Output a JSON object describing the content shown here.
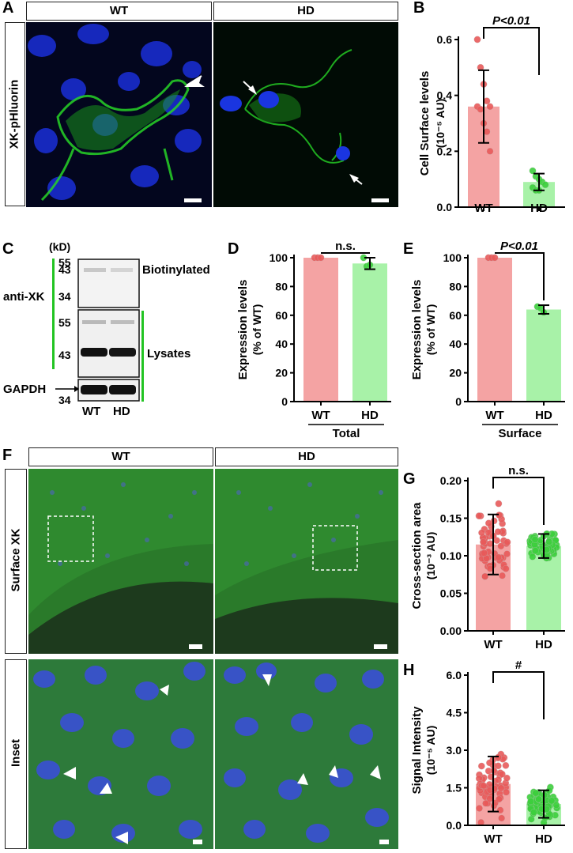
{
  "panels": {
    "A": {
      "letter": "A",
      "col_labels": [
        "WT",
        "HD"
      ],
      "row_label": "XK-pHluorin"
    },
    "B": {
      "letter": "B",
      "ylabel": "Cell Surface levels",
      "yunit": "(10⁻⁵ AU)",
      "categories": [
        "WT",
        "HD"
      ],
      "sig": "P<0.01"
    },
    "C": {
      "letter": "C",
      "kd": "(kD)",
      "markers": [
        "55",
        "43",
        "34",
        "55",
        "43",
        "34"
      ],
      "antibody": "anti-XK",
      "gapdh": "GAPDH",
      "biot": "Biotinylated",
      "lysates": "Lysates",
      "lanes": [
        "WT",
        "HD"
      ]
    },
    "D": {
      "letter": "D",
      "ylabel": "Expression  levels",
      "yunit": "(% of WT)",
      "categories": [
        "WT",
        "HD"
      ],
      "sig": "n.s.",
      "group": "Total"
    },
    "E": {
      "letter": "E",
      "ylabel": "Expression  levels",
      "yunit": "(% of WT)",
      "categories": [
        "WT",
        "HD"
      ],
      "sig": "P<0.01",
      "group": "Surface"
    },
    "F": {
      "letter": "F",
      "col_labels": [
        "WT",
        "HD"
      ],
      "row_labels": [
        "Surface XK",
        "Inset"
      ]
    },
    "G": {
      "letter": "G",
      "ylabel": "Cross-section area",
      "yunit": "(10⁻³ AU)",
      "categories": [
        "WT",
        "HD"
      ],
      "sig": "n.s."
    },
    "H": {
      "letter": "H",
      "ylabel": "Signal Intensity",
      "yunit": "(10⁻⁵ AU)",
      "categories": [
        "WT",
        "HD"
      ],
      "sig": "#"
    }
  },
  "chart_data": [
    {
      "panel": "B",
      "type": "bar",
      "categories": [
        "WT",
        "HD"
      ],
      "values": [
        0.36,
        0.09
      ],
      "errors": [
        0.13,
        0.03
      ],
      "points": [
        [
          0.6,
          0.5,
          0.44,
          0.38,
          0.36,
          0.36,
          0.35,
          0.3,
          0.27,
          0.2
        ],
        [
          0.13,
          0.11,
          0.1,
          0.09,
          0.08,
          0.07,
          0.06,
          0.06
        ]
      ],
      "ylim": [
        0,
        0.6
      ],
      "yticks": [
        "0.0",
        "0.2",
        "0.4",
        "0.6"
      ],
      "colors": [
        "#f4a3a3",
        "#a8f2a8"
      ],
      "point_colors": [
        "#e85a5a",
        "#3ccf3c"
      ]
    },
    {
      "panel": "D",
      "type": "bar",
      "categories": [
        "WT",
        "HD"
      ],
      "values": [
        100,
        96
      ],
      "errors": [
        0,
        4
      ],
      "points": [
        [
          100,
          100,
          100
        ],
        [
          100,
          94,
          95
        ]
      ],
      "ylim": [
        0,
        100
      ],
      "yticks": [
        "0",
        "20",
        "40",
        "60",
        "80",
        "100"
      ],
      "colors": [
        "#f4a3a3",
        "#a8f2a8"
      ],
      "point_colors": [
        "#e85a5a",
        "#3ccf3c"
      ]
    },
    {
      "panel": "E",
      "type": "bar",
      "categories": [
        "WT",
        "HD"
      ],
      "values": [
        100,
        64
      ],
      "errors": [
        0,
        3
      ],
      "points": [
        [
          100,
          100,
          100
        ],
        [
          66,
          65,
          62
        ]
      ],
      "ylim": [
        0,
        100
      ],
      "yticks": [
        "0",
        "20",
        "40",
        "60",
        "80",
        "100"
      ],
      "colors": [
        "#f4a3a3",
        "#a8f2a8"
      ],
      "point_colors": [
        "#e85a5a",
        "#3ccf3c"
      ]
    },
    {
      "panel": "G",
      "type": "bar",
      "categories": [
        "WT",
        "HD"
      ],
      "values": [
        0.115,
        0.113
      ],
      "errors": [
        0.04,
        0.016
      ],
      "ylim": [
        0,
        0.2
      ],
      "yticks": [
        "0.00",
        "0.05",
        "0.10",
        "0.15",
        "0.20"
      ],
      "colors": [
        "#f4a3a3",
        "#a8f2a8"
      ],
      "point_colors": [
        "#e85a5a",
        "#3ccf3c"
      ]
    },
    {
      "panel": "H",
      "type": "bar",
      "categories": [
        "WT",
        "HD"
      ],
      "values": [
        1.65,
        0.85
      ],
      "errors": [
        1.1,
        0.55
      ],
      "ylim": [
        0,
        6
      ],
      "yticks": [
        "0.0",
        "1.5",
        "3.0",
        "4.5",
        "6.0"
      ],
      "colors": [
        "#f4a3a3",
        "#a8f2a8"
      ],
      "point_colors": [
        "#e85a5a",
        "#3ccf3c"
      ]
    }
  ]
}
